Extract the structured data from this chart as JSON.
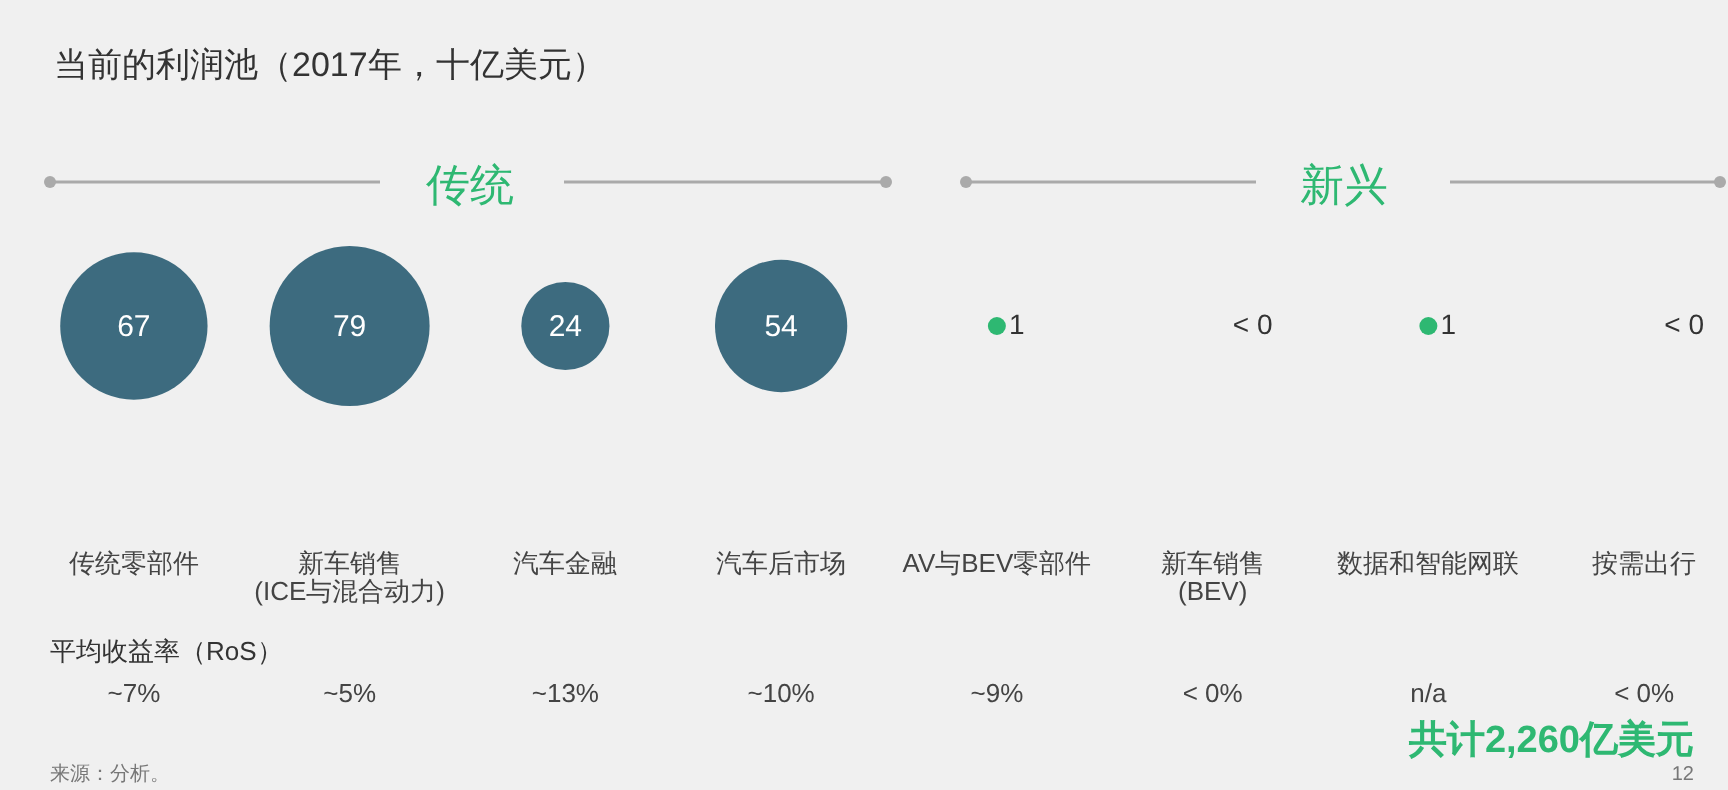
{
  "chart_data": {
    "type": "other",
    "title": "当前的利润池（2017年，十亿美元）",
    "categories": [
      "传统零部件",
      "新车销售\n(ICE与混合动力)",
      "汽车金融",
      "汽车后市场",
      "AV与BEV零部件",
      "新车销售\n(BEV)",
      "数据和智能网联",
      "按需出行"
    ],
    "values": [
      67,
      79,
      24,
      54,
      1,
      null,
      1,
      null
    ],
    "value_labels": [
      "67",
      "79",
      "24",
      "54",
      "1",
      "< 0",
      "1",
      "< 0"
    ],
    "colors": [
      "#3d6b7f",
      "#3d6b7f",
      "#3d6b7f",
      "#3d6b7f",
      "#2eb872",
      null,
      "#2eb872",
      null
    ],
    "annotations": [
      "传统",
      "新兴",
      "平均收益率（RoS）",
      "~7%",
      "~5%",
      "~13%",
      "~10%",
      "~9%",
      "< 0%",
      "n/a",
      "< 0%",
      "共计2,260亿美元",
      "来源：分析。",
      "12"
    ]
  }
}
